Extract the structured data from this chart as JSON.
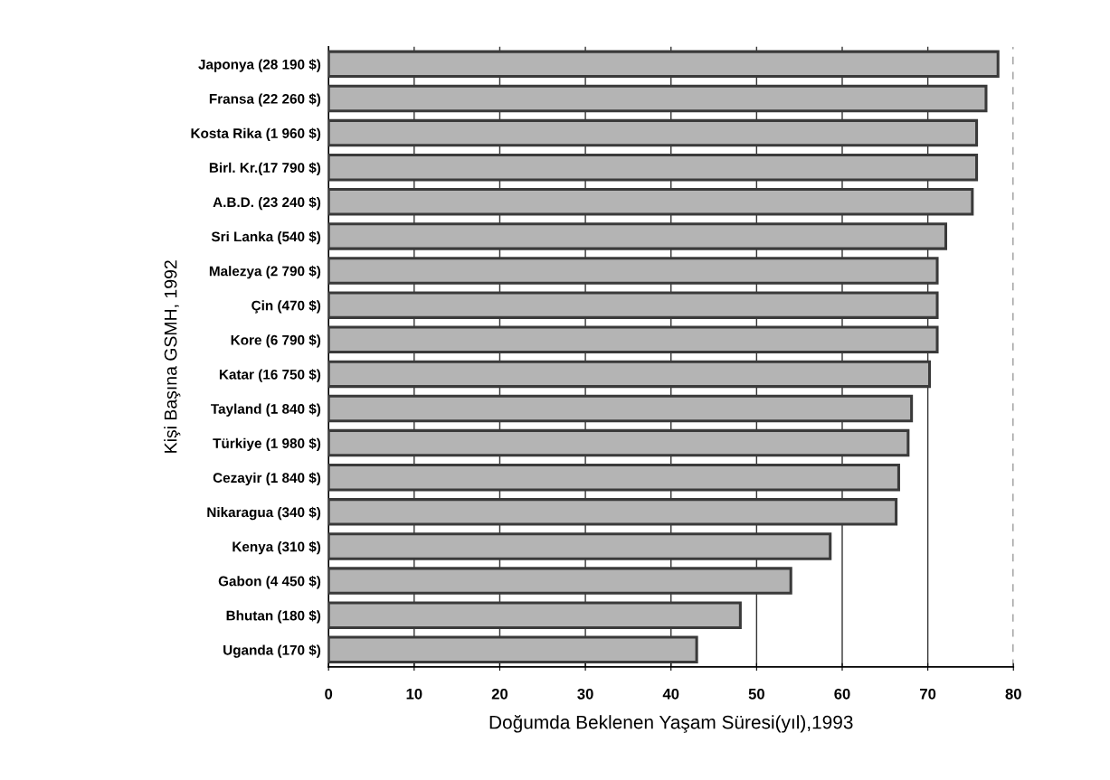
{
  "chart_data": {
    "type": "bar",
    "orientation": "horizontal",
    "xlabel": "Doğumda Beklenen Yaşam Süresi(yıl),1993",
    "ylabel": "Kişi Başına GSMH, 1992",
    "categories": [
      "Japonya (28 190 $)",
      "Fransa (22 260 $)",
      "Kosta Rika (1 960 $)",
      "Birl. Kr.(17 790 $)",
      "A.B.D. (23 240 $)",
      "Sri Lanka (540 $)",
      "Malezya (2 790 $)",
      "Çin (470 $)",
      "Kore (6 790 $)",
      "Katar (16 750 $)",
      "Tayland (1 840 $)",
      "Türkiye (1 980 $)",
      "Cezayir (1 840 $)",
      "Nikaragua (340 $)",
      "Kenya (310 $)",
      "Gabon (4 450 $)",
      "Bhutan (180 $)",
      "Uganda (170 $)"
    ],
    "values": [
      78.2,
      76.8,
      75.7,
      75.7,
      75.2,
      72.1,
      71.1,
      71.1,
      71.1,
      70.2,
      68.1,
      67.7,
      66.6,
      66.3,
      58.6,
      54.0,
      48.1,
      43.0
    ],
    "color": "#b4b4b4",
    "xlim": [
      0,
      80
    ],
    "xticks": [
      0,
      10,
      20,
      30,
      40,
      50,
      60,
      70,
      80
    ],
    "grid": "x"
  }
}
